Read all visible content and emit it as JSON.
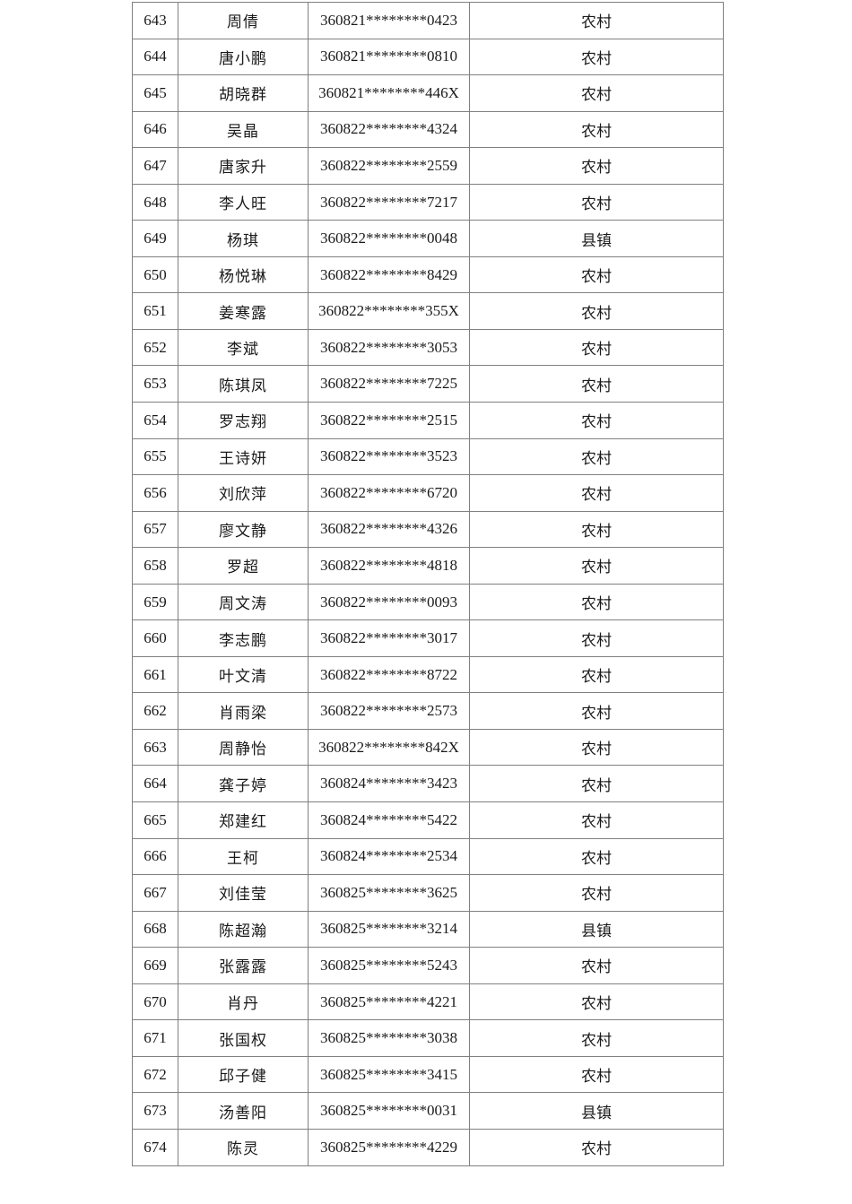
{
  "table": {
    "description_columns": [
      "serial-number",
      "name",
      "masked-id-number",
      "residence-type"
    ],
    "rows": [
      {
        "no": "643",
        "name": "周倩",
        "id": "360821********0423",
        "type": "农村"
      },
      {
        "no": "644",
        "name": "唐小鹏",
        "id": "360821********0810",
        "type": "农村"
      },
      {
        "no": "645",
        "name": "胡晓群",
        "id": "360821********446X",
        "type": "农村"
      },
      {
        "no": "646",
        "name": "吴晶",
        "id": "360822********4324",
        "type": "农村"
      },
      {
        "no": "647",
        "name": "唐家升",
        "id": "360822********2559",
        "type": "农村"
      },
      {
        "no": "648",
        "name": "李人旺",
        "id": "360822********7217",
        "type": "农村"
      },
      {
        "no": "649",
        "name": "杨琪",
        "id": "360822********0048",
        "type": "县镇"
      },
      {
        "no": "650",
        "name": "杨悦琳",
        "id": "360822********8429",
        "type": "农村"
      },
      {
        "no": "651",
        "name": "姜寒露",
        "id": "360822********355X",
        "type": "农村"
      },
      {
        "no": "652",
        "name": "李斌",
        "id": "360822********3053",
        "type": "农村"
      },
      {
        "no": "653",
        "name": "陈琪凤",
        "id": "360822********7225",
        "type": "农村"
      },
      {
        "no": "654",
        "name": "罗志翔",
        "id": "360822********2515",
        "type": "农村"
      },
      {
        "no": "655",
        "name": "王诗妍",
        "id": "360822********3523",
        "type": "农村"
      },
      {
        "no": "656",
        "name": "刘欣萍",
        "id": "360822********6720",
        "type": "农村"
      },
      {
        "no": "657",
        "name": "廖文静",
        "id": "360822********4326",
        "type": "农村"
      },
      {
        "no": "658",
        "name": "罗超",
        "id": "360822********4818",
        "type": "农村"
      },
      {
        "no": "659",
        "name": "周文涛",
        "id": "360822********0093",
        "type": "农村"
      },
      {
        "no": "660",
        "name": "李志鹏",
        "id": "360822********3017",
        "type": "农村"
      },
      {
        "no": "661",
        "name": "叶文清",
        "id": "360822********8722",
        "type": "农村"
      },
      {
        "no": "662",
        "name": "肖雨梁",
        "id": "360822********2573",
        "type": "农村"
      },
      {
        "no": "663",
        "name": "周静怡",
        "id": "360822********842X",
        "type": "农村"
      },
      {
        "no": "664",
        "name": "龚子婷",
        "id": "360824********3423",
        "type": "农村"
      },
      {
        "no": "665",
        "name": "郑建红",
        "id": "360824********5422",
        "type": "农村"
      },
      {
        "no": "666",
        "name": "王柯",
        "id": "360824********2534",
        "type": "农村"
      },
      {
        "no": "667",
        "name": "刘佳莹",
        "id": "360825********3625",
        "type": "农村"
      },
      {
        "no": "668",
        "name": "陈超瀚",
        "id": "360825********3214",
        "type": "县镇"
      },
      {
        "no": "669",
        "name": "张露露",
        "id": "360825********5243",
        "type": "农村"
      },
      {
        "no": "670",
        "name": "肖丹",
        "id": "360825********4221",
        "type": "农村"
      },
      {
        "no": "671",
        "name": "张国权",
        "id": "360825********3038",
        "type": "农村"
      },
      {
        "no": "672",
        "name": "邱子健",
        "id": "360825********3415",
        "type": "农村"
      },
      {
        "no": "673",
        "name": "汤善阳",
        "id": "360825********0031",
        "type": "县镇"
      },
      {
        "no": "674",
        "name": "陈灵",
        "id": "360825********4229",
        "type": "农村"
      }
    ],
    "colors": {
      "border": "#808080",
      "text": "#1a1a1a",
      "background": "#ffffff"
    }
  }
}
